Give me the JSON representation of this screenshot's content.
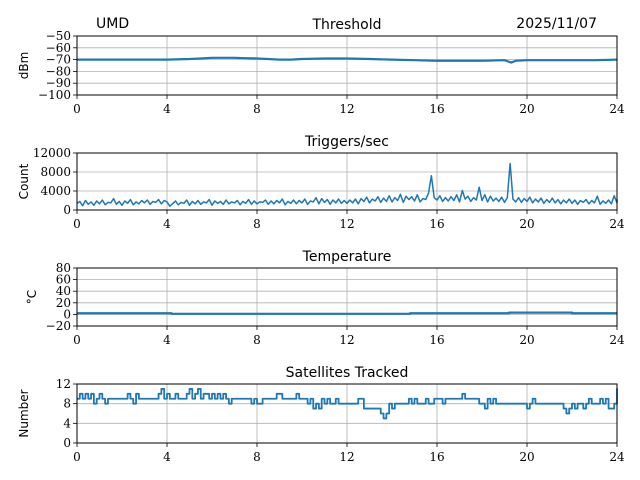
{
  "header": {
    "site": "UMD",
    "date": "2025/11/07"
  },
  "colors": {
    "line": "#1f77b4",
    "grid": "#b0b0b0",
    "axis": "#000000"
  },
  "chart_data": [
    {
      "type": "line",
      "title": "Threshold",
      "ylabel": "dBm",
      "xlim": [
        0,
        24
      ],
      "ylim": [
        -100,
        -50
      ],
      "xticks": [
        0,
        4,
        8,
        12,
        16,
        20,
        24
      ],
      "yticks": [
        -100,
        -90,
        -80,
        -70,
        -60,
        -50
      ],
      "ytick_labels": [
        "−100",
        "−90",
        "−80",
        "−70",
        "−60",
        "−50"
      ],
      "grid": true,
      "x": [
        0,
        1,
        2,
        3,
        4,
        5,
        5.5,
        6,
        7,
        7.5,
        8,
        9,
        9.5,
        10,
        11,
        12,
        13,
        14,
        15,
        16,
        17,
        18,
        19,
        19.3,
        19.5,
        20,
        21,
        22,
        23,
        24
      ],
      "y": [
        -70,
        -70,
        -70,
        -70,
        -70,
        -69.5,
        -69,
        -68.5,
        -68.5,
        -68.8,
        -69,
        -70,
        -70,
        -69.5,
        -69,
        -69,
        -69.5,
        -70,
        -70.5,
        -71,
        -71,
        -71,
        -70.5,
        -72.5,
        -71,
        -70.5,
        -70.5,
        -70.5,
        -70.5,
        -70
      ]
    },
    {
      "type": "line",
      "title": "Triggers/sec",
      "ylabel": "Count",
      "xlim": [
        0,
        24
      ],
      "ylim": [
        0,
        12000
      ],
      "xticks": [
        0,
        4,
        8,
        12,
        16,
        20,
        24
      ],
      "yticks": [
        0,
        4000,
        8000,
        12000
      ],
      "ytick_labels": [
        "0",
        "4000",
        "8000",
        "12000"
      ],
      "grid": true,
      "x_step_hours": 0.125,
      "y": [
        1400,
        1800,
        900,
        2000,
        1200,
        1700,
        1000,
        1900,
        1300,
        2100,
        1100,
        1600,
        1500,
        2400,
        1200,
        1800,
        1000,
        1900,
        1400,
        2200,
        1100,
        1700,
        1300,
        2000,
        1500,
        2100,
        1200,
        1800,
        1600,
        2200,
        1300,
        2000,
        1700,
        800,
        1300,
        1900,
        1100,
        1600,
        1400,
        2100,
        1000,
        1800,
        1300,
        2000,
        1200,
        1700,
        1500,
        2200,
        1000,
        1900,
        1400,
        1800,
        1200,
        2100,
        1300,
        1700,
        1500,
        2000,
        1100,
        1800,
        1400,
        2200,
        1200,
        1900,
        1300,
        1700,
        1600,
        2100,
        1200,
        1900,
        1300,
        2000,
        1500,
        2300,
        1100,
        1800,
        1400,
        2100,
        1300,
        2000,
        1500,
        2300,
        1200,
        1900,
        1700,
        2600,
        1300,
        2400,
        1600,
        2200,
        1200,
        2100,
        1500,
        2300,
        1400,
        2000,
        1400,
        2100,
        1500,
        2300,
        1300,
        2400,
        1800,
        2700,
        1500,
        2300,
        1900,
        2800,
        1600,
        2500,
        1800,
        3000,
        1700,
        2600,
        2000,
        3300,
        1600,
        2900,
        2200,
        2800,
        1900,
        3200,
        1700,
        2400,
        2200,
        3600,
        7200,
        2600,
        2100,
        3000,
        1800,
        2600,
        1900,
        2800,
        2000,
        3200,
        1700,
        4100,
        2300,
        2900,
        1800,
        2600,
        2100,
        4800,
        2000,
        3200,
        1700,
        2900,
        1900,
        2500,
        1800,
        2700,
        1600,
        2600,
        9800,
        2300,
        1700,
        2600,
        1600,
        2400,
        1800,
        2700,
        1500,
        2300,
        1700,
        2500,
        1400,
        2200,
        1600,
        2500,
        1500,
        2200,
        1300,
        2100,
        1500,
        2300,
        1400,
        2100,
        1200,
        2000,
        1600,
        2200,
        1300,
        2000,
        1500,
        2900,
        1200,
        1900,
        1400,
        2100,
        1300,
        3000,
        1500,
        2200
      ]
    },
    {
      "type": "line",
      "title": "Temperature",
      "ylabel": "°C",
      "xlim": [
        0,
        24
      ],
      "ylim": [
        -20,
        80
      ],
      "xticks": [
        0,
        4,
        8,
        12,
        16,
        20,
        24
      ],
      "yticks": [
        -20,
        0,
        20,
        40,
        60,
        80
      ],
      "ytick_labels": [
        "−20",
        "0",
        "20",
        "40",
        "60",
        "80"
      ],
      "grid": true,
      "x": [
        0,
        4.2,
        4.2,
        14.8,
        14.8,
        19.2,
        19.2,
        22,
        22,
        24
      ],
      "y": [
        2,
        2,
        1,
        1,
        2,
        2,
        3,
        3,
        2,
        2
      ]
    },
    {
      "type": "line",
      "title": "Satellites Tracked",
      "ylabel": "Number",
      "xlim": [
        0,
        24
      ],
      "ylim": [
        0,
        12
      ],
      "xticks": [
        0,
        4,
        8,
        12,
        16,
        20,
        24
      ],
      "yticks": [
        0,
        4,
        8,
        12
      ],
      "ytick_labels": [
        "0",
        "4",
        "8",
        "12"
      ],
      "grid": true,
      "x_step_hours": 0.125,
      "y": [
        9,
        10,
        9,
        10,
        9,
        10,
        8,
        9,
        10,
        9,
        8,
        9,
        9,
        9,
        9,
        9,
        9,
        9,
        10,
        9,
        8,
        10,
        9,
        9,
        9,
        9,
        9,
        9,
        9,
        10,
        11,
        9,
        10,
        9,
        9,
        10,
        9,
        9,
        9,
        10,
        11,
        9,
        10,
        11,
        9,
        10,
        10,
        9,
        10,
        9,
        10,
        9,
        10,
        9,
        8,
        9,
        9,
        9,
        9,
        9,
        9,
        9,
        8,
        9,
        8,
        8,
        9,
        9,
        9,
        9,
        9,
        10,
        10,
        9,
        9,
        9,
        9,
        9,
        10,
        9,
        9,
        9,
        8,
        9,
        7,
        8,
        7,
        9,
        8,
        9,
        8,
        8,
        9,
        8,
        8,
        8,
        8,
        8,
        8,
        8,
        9,
        9,
        7,
        7,
        7,
        7,
        7,
        7,
        6,
        5,
        6,
        8,
        7,
        8,
        8,
        8,
        8,
        8,
        9,
        8,
        9,
        8,
        8,
        8,
        9,
        8,
        8,
        9,
        9,
        9,
        8,
        9,
        9,
        9,
        9,
        9,
        9,
        10,
        9,
        9,
        9,
        9,
        9,
        8,
        8,
        7,
        9,
        8,
        9,
        8,
        8,
        8,
        8,
        8,
        8,
        8,
        8,
        8,
        8,
        8,
        7,
        8,
        9,
        8,
        8,
        8,
        8,
        8,
        8,
        8,
        8,
        8,
        8,
        7,
        6,
        7,
        8,
        7,
        8,
        8,
        7,
        8,
        9,
        8,
        8,
        8,
        9,
        8,
        9,
        7,
        7,
        8,
        9,
        10,
        11,
        10,
        9,
        9,
        9,
        9
      ]
    }
  ]
}
